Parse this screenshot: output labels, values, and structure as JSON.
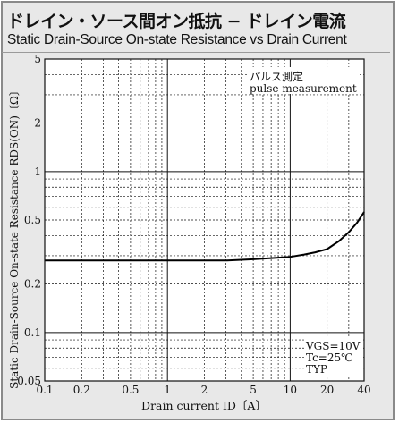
{
  "title_jp": "ドレイン・ソース間オン抵抗 − ドレイン電流",
  "title_en": "Static Drain-Source On-state Resistance vs Drain Current",
  "chart_data": {
    "type": "line",
    "xscale": "log",
    "yscale": "log",
    "xlim": [
      0.1,
      40
    ],
    "ylim": [
      0.05,
      5
    ],
    "x_ticks": [
      {
        "value": 0.1,
        "label": "0.1"
      },
      {
        "value": 0.2,
        "label": "0.2"
      },
      {
        "value": 0.5,
        "label": "0.5"
      },
      {
        "value": 1,
        "label": "1"
      },
      {
        "value": 2,
        "label": "2"
      },
      {
        "value": 5,
        "label": "5"
      },
      {
        "value": 10,
        "label": "10"
      },
      {
        "value": 20,
        "label": "20"
      },
      {
        "value": 40,
        "label": "40"
      }
    ],
    "y_ticks": [
      {
        "value": 0.05,
        "label": "0.05"
      },
      {
        "value": 0.1,
        "label": "0.1"
      },
      {
        "value": 0.2,
        "label": "0.2"
      },
      {
        "value": 0.5,
        "label": "0.5"
      },
      {
        "value": 1,
        "label": "1"
      },
      {
        "value": 2,
        "label": "2"
      },
      {
        "value": 5,
        "label": "5"
      }
    ],
    "xlabel": "Drain current  ID〔A〕",
    "ylabel": "Static Drain-Source On-state Resistance  RDS(ON)〔Ω〕",
    "grid": true,
    "annotations": [
      {
        "text": "パルス測定",
        "position": "top-right"
      },
      {
        "text": "pulse measurement",
        "position": "top-right"
      }
    ],
    "conditions": [
      "VGS=10V",
      "Tc=25℃",
      "TYP"
    ],
    "series": [
      {
        "x": [
          0.1,
          0.2,
          0.5,
          1,
          2,
          3,
          5,
          7,
          10,
          13,
          16,
          20,
          25,
          30,
          35,
          40
        ],
        "y": [
          0.28,
          0.28,
          0.28,
          0.28,
          0.28,
          0.28,
          0.285,
          0.29,
          0.295,
          0.305,
          0.315,
          0.33,
          0.37,
          0.42,
          0.48,
          0.56
        ]
      }
    ]
  }
}
